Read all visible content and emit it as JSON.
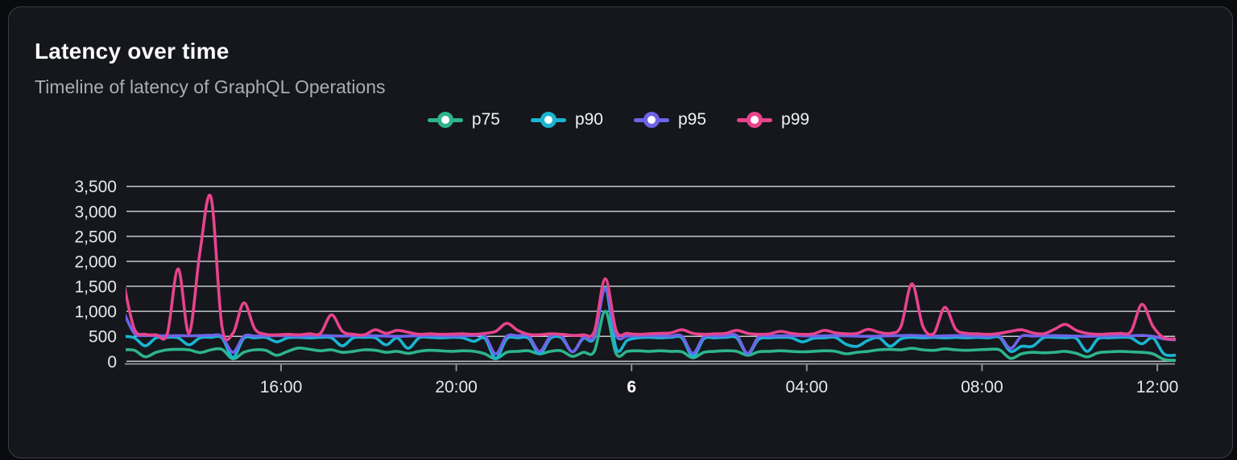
{
  "card": {
    "title": "Latency over time",
    "subtitle": "Timeline of latency of GraphQL Operations"
  },
  "colors": {
    "page_background": "#0a0b0e",
    "card_background": "#15171c",
    "card_border": "#3a3e45",
    "title_text": "#fafafa",
    "subtitle_text": "#a9aeb6",
    "gridline": "#d8dbe0",
    "axis_line": "#8a8f99",
    "axis_label": "#e6e8eb",
    "legend_label": "#f2f3f5"
  },
  "chart_data": {
    "type": "line",
    "title": "Latency over time",
    "subtitle": "Timeline of latency of GraphQL Operations",
    "legend_position": "top-center",
    "grid": true,
    "ylim": [
      0,
      3500
    ],
    "yticks": [
      {
        "value": 0,
        "label": "0"
      },
      {
        "value": 500,
        "label": "500"
      },
      {
        "value": 1000,
        "label": "1,000"
      },
      {
        "value": 1500,
        "label": "1,500"
      },
      {
        "value": 2000,
        "label": "2,000"
      },
      {
        "value": 2500,
        "label": "2,500"
      },
      {
        "value": 3000,
        "label": "3,000"
      },
      {
        "value": 3500,
        "label": "3,500"
      }
    ],
    "xticks": [
      {
        "hour": 16,
        "label": "16:00",
        "bold": false
      },
      {
        "hour": 20,
        "label": "20:00",
        "bold": false
      },
      {
        "hour": 24,
        "label": "6",
        "bold": true
      },
      {
        "hour": 28,
        "label": "04:00",
        "bold": false
      },
      {
        "hour": 32,
        "label": "08:00",
        "bold": false
      },
      {
        "hour": 36,
        "label": "12:00",
        "bold": false
      }
    ],
    "x_start_hour": 12.4,
    "x_step_hours": 0.25,
    "x_note": "hours >= 24 are the following day (day 6); window spans ~12:30 to ~12:20 next day",
    "series": [
      {
        "name": "p75",
        "color": "#2eb48b",
        "values": [
          230,
          220,
          90,
          180,
          230,
          240,
          230,
          175,
          230,
          240,
          50,
          180,
          230,
          220,
          120,
          200,
          265,
          240,
          210,
          230,
          180,
          200,
          230,
          220,
          180,
          200,
          160,
          200,
          220,
          210,
          200,
          210,
          200,
          150,
          50,
          180,
          200,
          210,
          150,
          200,
          210,
          100,
          180,
          200,
          1000,
          150,
          200,
          210,
          200,
          210,
          200,
          190,
          70,
          180,
          200,
          210,
          200,
          120,
          190,
          200,
          210,
          200,
          190,
          200,
          210,
          200,
          150,
          180,
          200,
          230,
          240,
          230,
          260,
          230,
          220,
          250,
          230,
          220,
          230,
          240,
          230,
          60,
          150,
          180,
          170,
          180,
          200,
          160,
          90,
          170,
          190,
          200,
          190,
          180,
          150,
          40,
          20
        ]
      },
      {
        "name": "p90",
        "color": "#19b5d2",
        "values": [
          500,
          470,
          310,
          470,
          480,
          470,
          330,
          470,
          480,
          470,
          80,
          460,
          470,
          480,
          390,
          470,
          480,
          470,
          480,
          470,
          310,
          470,
          480,
          470,
          330,
          470,
          260,
          470,
          480,
          470,
          480,
          470,
          400,
          460,
          60,
          450,
          470,
          460,
          150,
          460,
          470,
          190,
          460,
          470,
          1470,
          250,
          420,
          470,
          480,
          470,
          480,
          470,
          100,
          450,
          470,
          480,
          470,
          150,
          440,
          470,
          480,
          470,
          390,
          460,
          470,
          480,
          340,
          300,
          420,
          470,
          300,
          450,
          480,
          470,
          480,
          470,
          480,
          470,
          480,
          470,
          480,
          200,
          300,
          300,
          470,
          480,
          470,
          460,
          200,
          450,
          470,
          480,
          470,
          350,
          470,
          150,
          120
        ]
      },
      {
        "name": "p95",
        "color": "#6e63e8",
        "values": [
          1000,
          560,
          520,
          515,
          510,
          515,
          510,
          515,
          520,
          500,
          180,
          500,
          505,
          510,
          515,
          510,
          505,
          510,
          515,
          510,
          505,
          510,
          515,
          510,
          505,
          500,
          505,
          510,
          515,
          510,
          505,
          510,
          515,
          510,
          150,
          500,
          510,
          505,
          200,
          500,
          505,
          190,
          480,
          500,
          1450,
          520,
          505,
          510,
          515,
          510,
          505,
          500,
          160,
          490,
          505,
          510,
          515,
          160,
          490,
          505,
          510,
          515,
          510,
          505,
          510,
          515,
          510,
          505,
          500,
          505,
          510,
          515,
          520,
          510,
          505,
          510,
          515,
          510,
          505,
          500,
          505,
          260,
          500,
          505,
          510,
          515,
          510,
          505,
          500,
          505,
          510,
          515,
          510,
          520,
          500,
          450,
          430
        ]
      },
      {
        "name": "p99",
        "color": "#e8438d",
        "values": [
          1600,
          650,
          540,
          530,
          540,
          1850,
          560,
          2200,
          3280,
          700,
          560,
          1170,
          650,
          540,
          530,
          540,
          530,
          550,
          560,
          930,
          600,
          540,
          530,
          630,
          560,
          620,
          580,
          540,
          550,
          540,
          545,
          550,
          540,
          560,
          600,
          760,
          620,
          540,
          530,
          550,
          540,
          520,
          530,
          600,
          1650,
          610,
          560,
          540,
          550,
          560,
          570,
          630,
          560,
          540,
          550,
          560,
          620,
          560,
          540,
          550,
          600,
          560,
          540,
          550,
          620,
          570,
          550,
          560,
          640,
          580,
          560,
          700,
          1550,
          700,
          560,
          1080,
          640,
          560,
          550,
          540,
          560,
          600,
          630,
          570,
          550,
          640,
          740,
          620,
          560,
          540,
          550,
          560,
          600,
          1140,
          700,
          470,
          450
        ]
      }
    ]
  }
}
